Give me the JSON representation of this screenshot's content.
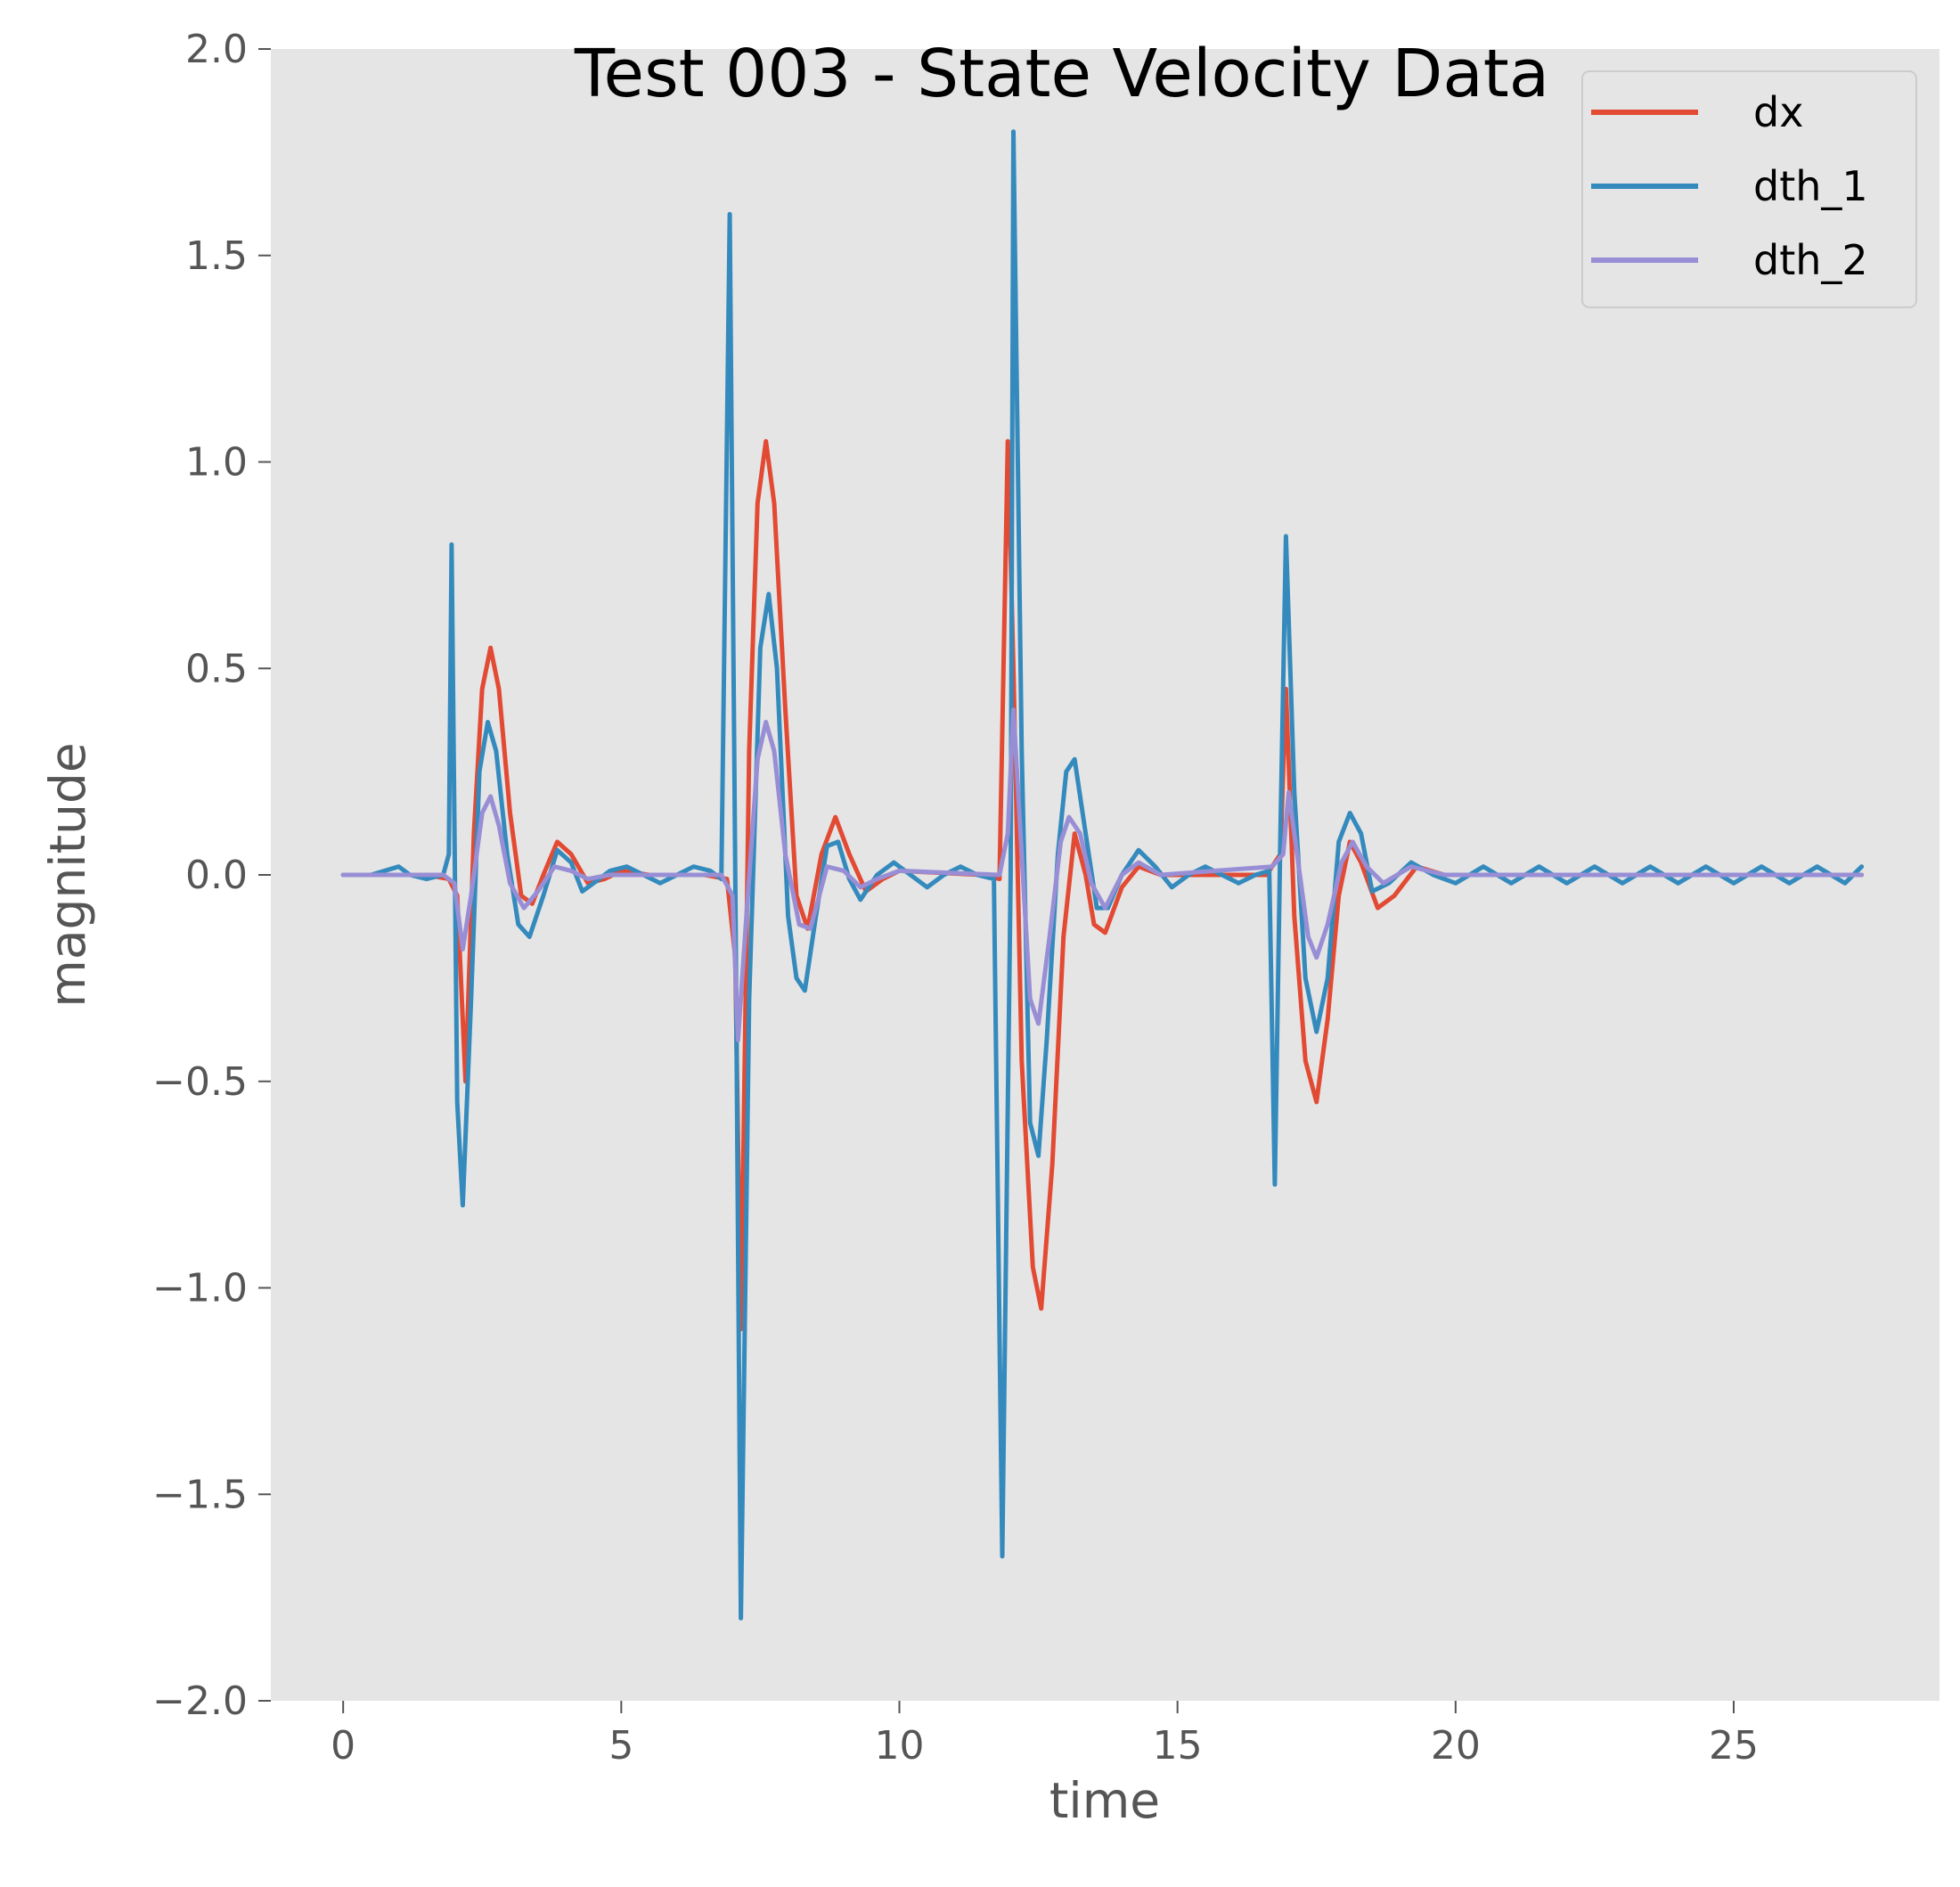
{
  "chart_data": {
    "type": "line",
    "title": "Test 003 - State Velocity Data",
    "xlabel": "time",
    "ylabel": "magnitude",
    "xlim": [
      -1.3,
      28.7
    ],
    "ylim": [
      -2.0,
      2.0
    ],
    "xticks": [
      0,
      5,
      10,
      15,
      20,
      25
    ],
    "xtick_labels": [
      "0",
      "5",
      "10",
      "15",
      "20",
      "25"
    ],
    "yticks": [
      2.0,
      1.5,
      1.0,
      0.5,
      0.0,
      -0.5,
      -1.0,
      -1.5,
      -2.0
    ],
    "ytick_labels": [
      "2.0",
      "1.5",
      "1.0",
      "0.5",
      "0.0",
      "−0.5",
      "−1.0",
      "−1.5",
      "−2.0"
    ],
    "grid": false,
    "legend_position": "top-right",
    "background": "#e5e5e5",
    "series": [
      {
        "name": "dx",
        "color": "#e24a33",
        "points": [
          [
            0,
            0
          ],
          [
            1.0,
            0.0
          ],
          [
            1.5,
            0.0
          ],
          [
            1.9,
            -0.01
          ],
          [
            2.05,
            -0.05
          ],
          [
            2.2,
            -0.5
          ],
          [
            2.35,
            0.1
          ],
          [
            2.5,
            0.45
          ],
          [
            2.65,
            0.55
          ],
          [
            2.8,
            0.45
          ],
          [
            3.0,
            0.15
          ],
          [
            3.2,
            -0.05
          ],
          [
            3.4,
            -0.07
          ],
          [
            3.6,
            0.0
          ],
          [
            3.85,
            0.08
          ],
          [
            4.1,
            0.05
          ],
          [
            4.4,
            -0.02
          ],
          [
            4.7,
            -0.01
          ],
          [
            5.0,
            0.01
          ],
          [
            5.5,
            0.0
          ],
          [
            6.5,
            0.0
          ],
          [
            6.9,
            -0.01
          ],
          [
            7.05,
            -0.2
          ],
          [
            7.15,
            -1.1
          ],
          [
            7.3,
            0.3
          ],
          [
            7.45,
            0.9
          ],
          [
            7.6,
            1.05
          ],
          [
            7.75,
            0.9
          ],
          [
            7.95,
            0.4
          ],
          [
            8.15,
            -0.05
          ],
          [
            8.35,
            -0.13
          ],
          [
            8.6,
            0.05
          ],
          [
            8.85,
            0.14
          ],
          [
            9.1,
            0.05
          ],
          [
            9.4,
            -0.04
          ],
          [
            9.7,
            -0.01
          ],
          [
            10.0,
            0.01
          ],
          [
            11.5,
            0.0
          ],
          [
            11.8,
            -0.01
          ],
          [
            11.95,
            1.05
          ],
          [
            12.05,
            0.5
          ],
          [
            12.2,
            -0.45
          ],
          [
            12.4,
            -0.95
          ],
          [
            12.55,
            -1.05
          ],
          [
            12.75,
            -0.7
          ],
          [
            12.95,
            -0.15
          ],
          [
            13.15,
            0.1
          ],
          [
            13.35,
            0.0
          ],
          [
            13.5,
            -0.12
          ],
          [
            13.7,
            -0.14
          ],
          [
            14.0,
            -0.03
          ],
          [
            14.3,
            0.02
          ],
          [
            14.7,
            0.0
          ],
          [
            16.6,
            0.0
          ],
          [
            16.85,
            0.05
          ],
          [
            16.95,
            0.45
          ],
          [
            17.1,
            -0.1
          ],
          [
            17.3,
            -0.45
          ],
          [
            17.5,
            -0.55
          ],
          [
            17.7,
            -0.35
          ],
          [
            17.9,
            -0.05
          ],
          [
            18.1,
            0.08
          ],
          [
            18.3,
            0.03
          ],
          [
            18.6,
            -0.08
          ],
          [
            18.9,
            -0.05
          ],
          [
            19.3,
            0.02
          ],
          [
            19.8,
            0.0
          ],
          [
            27.3,
            0.0
          ]
        ]
      },
      {
        "name": "dth_1",
        "color": "#348abd",
        "points": [
          [
            0,
            0
          ],
          [
            0.5,
            0.0
          ],
          [
            1.0,
            0.02
          ],
          [
            1.2,
            0.0
          ],
          [
            1.5,
            -0.01
          ],
          [
            1.8,
            0.0
          ],
          [
            1.9,
            0.05
          ],
          [
            1.95,
            0.8
          ],
          [
            2.05,
            -0.55
          ],
          [
            2.15,
            -0.8
          ],
          [
            2.3,
            -0.3
          ],
          [
            2.45,
            0.25
          ],
          [
            2.6,
            0.37
          ],
          [
            2.75,
            0.3
          ],
          [
            2.95,
            0.05
          ],
          [
            3.15,
            -0.12
          ],
          [
            3.35,
            -0.15
          ],
          [
            3.6,
            -0.05
          ],
          [
            3.85,
            0.06
          ],
          [
            4.1,
            0.03
          ],
          [
            4.3,
            -0.04
          ],
          [
            4.5,
            -0.02
          ],
          [
            4.8,
            0.01
          ],
          [
            5.1,
            0.02
          ],
          [
            5.4,
            0.0
          ],
          [
            5.7,
            -0.02
          ],
          [
            6.0,
            0.0
          ],
          [
            6.3,
            0.02
          ],
          [
            6.6,
            0.01
          ],
          [
            6.8,
            -0.01
          ],
          [
            6.95,
            1.6
          ],
          [
            7.05,
            0.0
          ],
          [
            7.15,
            -1.8
          ],
          [
            7.3,
            -0.3
          ],
          [
            7.5,
            0.55
          ],
          [
            7.65,
            0.68
          ],
          [
            7.8,
            0.5
          ],
          [
            8.0,
            -0.1
          ],
          [
            8.15,
            -0.25
          ],
          [
            8.3,
            -0.28
          ],
          [
            8.5,
            -0.1
          ],
          [
            8.7,
            0.07
          ],
          [
            8.9,
            0.08
          ],
          [
            9.1,
            -0.01
          ],
          [
            9.3,
            -0.06
          ],
          [
            9.6,
            0.0
          ],
          [
            9.9,
            0.03
          ],
          [
            10.2,
            0.0
          ],
          [
            10.5,
            -0.03
          ],
          [
            10.8,
            0.0
          ],
          [
            11.1,
            0.02
          ],
          [
            11.4,
            0.0
          ],
          [
            11.7,
            -0.01
          ],
          [
            11.85,
            -1.65
          ],
          [
            12.0,
            0.0
          ],
          [
            12.05,
            1.8
          ],
          [
            12.2,
            0.3
          ],
          [
            12.35,
            -0.6
          ],
          [
            12.5,
            -0.68
          ],
          [
            12.65,
            -0.4
          ],
          [
            12.85,
            0.05
          ],
          [
            13.0,
            0.25
          ],
          [
            13.15,
            0.28
          ],
          [
            13.35,
            0.1
          ],
          [
            13.55,
            -0.08
          ],
          [
            13.75,
            -0.08
          ],
          [
            14.0,
            0.0
          ],
          [
            14.3,
            0.06
          ],
          [
            14.6,
            0.02
          ],
          [
            14.9,
            -0.03
          ],
          [
            15.2,
            0.0
          ],
          [
            15.5,
            0.02
          ],
          [
            15.8,
            0.0
          ],
          [
            16.1,
            -0.02
          ],
          [
            16.4,
            0.0
          ],
          [
            16.65,
            0.01
          ],
          [
            16.75,
            -0.75
          ],
          [
            16.85,
            0.1
          ],
          [
            16.95,
            0.82
          ],
          [
            17.1,
            0.2
          ],
          [
            17.3,
            -0.25
          ],
          [
            17.5,
            -0.38
          ],
          [
            17.7,
            -0.25
          ],
          [
            17.9,
            0.08
          ],
          [
            18.1,
            0.15
          ],
          [
            18.3,
            0.1
          ],
          [
            18.5,
            -0.04
          ],
          [
            18.8,
            -0.02
          ],
          [
            19.2,
            0.03
          ],
          [
            19.6,
            0.0
          ],
          [
            20.0,
            -0.02
          ],
          [
            20.5,
            0.02
          ],
          [
            21.0,
            -0.02
          ],
          [
            21.5,
            0.02
          ],
          [
            22.0,
            -0.02
          ],
          [
            22.5,
            0.02
          ],
          [
            23.0,
            -0.02
          ],
          [
            23.5,
            0.02
          ],
          [
            24.0,
            -0.02
          ],
          [
            24.5,
            0.02
          ],
          [
            25.0,
            -0.02
          ],
          [
            25.5,
            0.02
          ],
          [
            26.0,
            -0.02
          ],
          [
            26.5,
            0.02
          ],
          [
            27.0,
            -0.02
          ],
          [
            27.3,
            0.02
          ]
        ]
      },
      {
        "name": "dth_2",
        "color": "#988ed5",
        "points": [
          [
            0,
            0
          ],
          [
            1.0,
            0.0
          ],
          [
            1.8,
            0.0
          ],
          [
            2.0,
            -0.02
          ],
          [
            2.15,
            -0.18
          ],
          [
            2.3,
            -0.05
          ],
          [
            2.5,
            0.15
          ],
          [
            2.65,
            0.19
          ],
          [
            2.8,
            0.12
          ],
          [
            3.0,
            -0.02
          ],
          [
            3.25,
            -0.08
          ],
          [
            3.5,
            -0.04
          ],
          [
            3.8,
            0.02
          ],
          [
            4.1,
            0.01
          ],
          [
            4.4,
            -0.01
          ],
          [
            4.8,
            0.0
          ],
          [
            6.8,
            0.0
          ],
          [
            7.0,
            -0.05
          ],
          [
            7.1,
            -0.4
          ],
          [
            7.25,
            -0.1
          ],
          [
            7.45,
            0.28
          ],
          [
            7.6,
            0.37
          ],
          [
            7.75,
            0.3
          ],
          [
            7.95,
            0.05
          ],
          [
            8.2,
            -0.12
          ],
          [
            8.4,
            -0.13
          ],
          [
            8.7,
            0.02
          ],
          [
            9.0,
            0.01
          ],
          [
            9.3,
            -0.03
          ],
          [
            9.6,
            -0.01
          ],
          [
            10.0,
            0.01
          ],
          [
            11.8,
            0.0
          ],
          [
            11.95,
            0.1
          ],
          [
            12.05,
            0.4
          ],
          [
            12.2,
            0.05
          ],
          [
            12.35,
            -0.3
          ],
          [
            12.5,
            -0.36
          ],
          [
            12.7,
            -0.15
          ],
          [
            12.9,
            0.08
          ],
          [
            13.05,
            0.14
          ],
          [
            13.25,
            0.1
          ],
          [
            13.45,
            -0.02
          ],
          [
            13.7,
            -0.08
          ],
          [
            14.0,
            0.0
          ],
          [
            14.3,
            0.03
          ],
          [
            14.7,
            0.0
          ],
          [
            16.7,
            0.02
          ],
          [
            16.9,
            0.05
          ],
          [
            17.0,
            0.2
          ],
          [
            17.15,
            0.05
          ],
          [
            17.35,
            -0.15
          ],
          [
            17.5,
            -0.2
          ],
          [
            17.7,
            -0.12
          ],
          [
            17.95,
            0.03
          ],
          [
            18.15,
            0.08
          ],
          [
            18.4,
            0.02
          ],
          [
            18.7,
            -0.02
          ],
          [
            19.2,
            0.02
          ],
          [
            19.8,
            0.0
          ],
          [
            27.3,
            0.0
          ]
        ]
      }
    ]
  }
}
